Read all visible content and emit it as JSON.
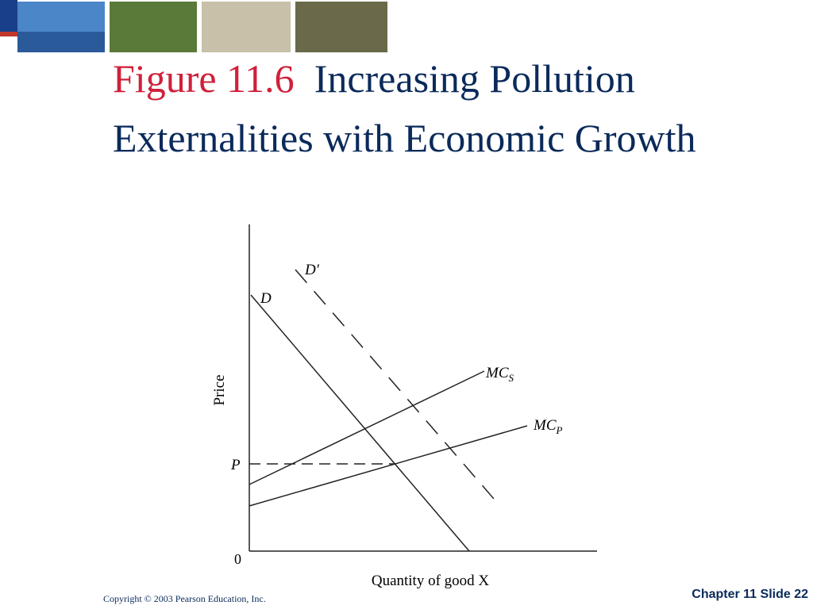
{
  "header": {
    "figure": "Figure 11.6",
    "title": "Increasing Pollution Externalities with Economic Growth"
  },
  "diagram": {
    "y_axis_label": "Price",
    "x_axis_label": "Quantity of good X",
    "origin": "0",
    "price_label": "P",
    "curves": [
      {
        "label": "D′"
      },
      {
        "label": "D"
      },
      {
        "label": "MC",
        "subscript": "S"
      },
      {
        "label": "MC",
        "subscript": "P"
      }
    ]
  },
  "footer": {
    "copyright": "Copyright © 2003 Pearson Education, Inc.",
    "slide": "Chapter 11 Slide 22"
  }
}
